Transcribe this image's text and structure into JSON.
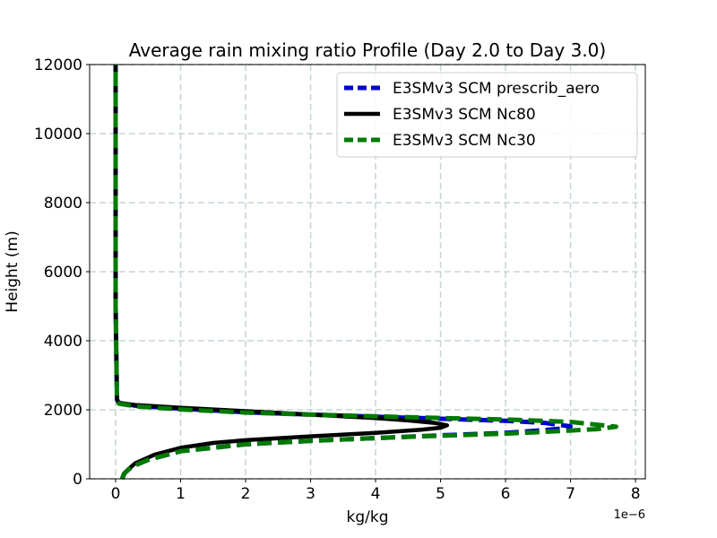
{
  "chart_data": {
    "type": "line",
    "title": "Average rain mixing ratio Profile (Day 2.0 to Day 3.0)",
    "xlabel": "kg/kg",
    "ylabel": "Height (m)",
    "x_offset_label": "1e−6",
    "xlim": [
      -0.4,
      8.15
    ],
    "ylim": [
      0,
      12000
    ],
    "x_ticks": [
      0,
      1,
      2,
      3,
      4,
      5,
      6,
      7,
      8
    ],
    "x_tick_labels": [
      "0",
      "1",
      "2",
      "3",
      "4",
      "5",
      "6",
      "7",
      "8"
    ],
    "y_ticks": [
      0,
      2000,
      4000,
      6000,
      8000,
      10000,
      12000
    ],
    "y_tick_labels": [
      "0",
      "2000",
      "4000",
      "6000",
      "8000",
      "10000",
      "12000"
    ],
    "grid": true,
    "legend_position": "top-right",
    "series": [
      {
        "name": "E3SMv3 SCM prescrib_aero",
        "color": "#0000cc",
        "dash": "dashed",
        "x": [
          0.1,
          0.13,
          0.25,
          0.5,
          1.0,
          2.0,
          3.0,
          4.0,
          5.0,
          6.0,
          6.5,
          6.9,
          7.0,
          6.6,
          6.0,
          5.0,
          4.0,
          3.0,
          2.0,
          1.0,
          0.3,
          0.05,
          0.02,
          0.0,
          0.0
        ],
        "y": [
          0,
          150,
          350,
          550,
          800,
          1000,
          1100,
          1180,
          1260,
          1330,
          1400,
          1460,
          1520,
          1620,
          1680,
          1740,
          1800,
          1860,
          1930,
          2030,
          2120,
          2200,
          2300,
          5000,
          12000
        ]
      },
      {
        "name": "E3SMv3 SCM Nc80",
        "color": "#000000",
        "dash": "solid",
        "x": [
          0.1,
          0.15,
          0.3,
          0.6,
          1.0,
          1.5,
          2.0,
          3.0,
          4.0,
          4.7,
          5.0,
          5.1,
          4.9,
          4.5,
          4.0,
          3.0,
          2.0,
          1.0,
          0.3,
          0.05,
          0.02,
          0.0,
          0.0
        ],
        "y": [
          0,
          200,
          450,
          700,
          900,
          1040,
          1120,
          1230,
          1330,
          1420,
          1480,
          1550,
          1620,
          1690,
          1760,
          1860,
          1960,
          2060,
          2140,
          2200,
          2300,
          5000,
          12000
        ]
      },
      {
        "name": "E3SMv3 SCM Nc30",
        "color": "#007a00",
        "dash": "dashed",
        "x": [
          0.1,
          0.13,
          0.25,
          0.5,
          1.0,
          2.0,
          3.0,
          4.0,
          5.0,
          6.0,
          6.8,
          7.4,
          7.7,
          7.0,
          6.0,
          5.0,
          4.0,
          3.0,
          2.0,
          1.0,
          0.3,
          0.05,
          0.02,
          0.0,
          0.0
        ],
        "y": [
          0,
          150,
          350,
          550,
          800,
          1000,
          1100,
          1180,
          1250,
          1310,
          1380,
          1440,
          1510,
          1650,
          1720,
          1760,
          1810,
          1860,
          1920,
          2010,
          2100,
          2180,
          2280,
          5000,
          12000
        ]
      }
    ]
  }
}
